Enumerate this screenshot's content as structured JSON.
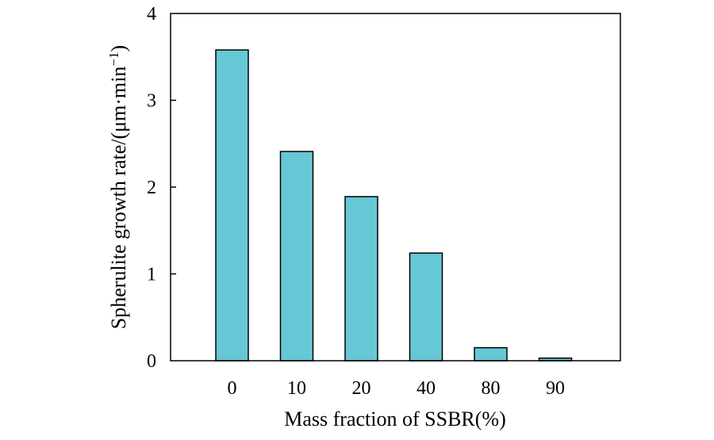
{
  "chart_data": {
    "type": "bar",
    "title": "",
    "categories": [
      "0",
      "10",
      "20",
      "40",
      "80",
      "90"
    ],
    "values": [
      3.58,
      2.41,
      1.89,
      1.24,
      0.15,
      0.03
    ],
    "ylim": [
      0,
      4
    ],
    "yticks": [
      "0",
      "1",
      "2",
      "3",
      "4"
    ],
    "xlabel": "Mass fraction of SSBR(%)",
    "ylabel": {
      "main": "Spherulite growth rate/(μm·min",
      "sup": "−1",
      "close": ")"
    },
    "bar_color": "#66c8d4",
    "grid": false
  }
}
